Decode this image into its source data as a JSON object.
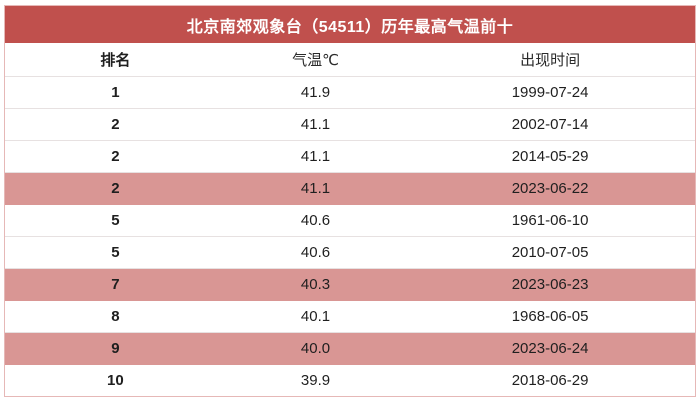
{
  "title": "北京南郊观象台（54511）历年最高气温前十",
  "table": {
    "headers": {
      "rank": "排名",
      "temp": "气温℃",
      "date": "出现时间"
    },
    "rows": [
      {
        "rank": "1",
        "temp": "41.9",
        "date": "1999-07-24",
        "highlight": false
      },
      {
        "rank": "2",
        "temp": "41.1",
        "date": "2002-07-14",
        "highlight": false
      },
      {
        "rank": "2",
        "temp": "41.1",
        "date": "2014-05-29",
        "highlight": false
      },
      {
        "rank": "2",
        "temp": "41.1",
        "date": "2023-06-22",
        "highlight": true
      },
      {
        "rank": "5",
        "temp": "40.6",
        "date": "1961-06-10",
        "highlight": false
      },
      {
        "rank": "5",
        "temp": "40.6",
        "date": "2010-07-05",
        "highlight": false
      },
      {
        "rank": "7",
        "temp": "40.3",
        "date": "2023-06-23",
        "highlight": true
      },
      {
        "rank": "8",
        "temp": "40.1",
        "date": "1968-06-05",
        "highlight": false
      },
      {
        "rank": "9",
        "temp": "40.0",
        "date": "2023-06-24",
        "highlight": true
      },
      {
        "rank": "10",
        "temp": "39.9",
        "date": "2018-06-29",
        "highlight": false
      }
    ]
  },
  "colors": {
    "header_bg": "#c0504d",
    "title_text": "#ffffff",
    "highlight_bg": "#d99694",
    "outer_border": "#e6b8b7",
    "row_separator": "#e7e1e1"
  }
}
